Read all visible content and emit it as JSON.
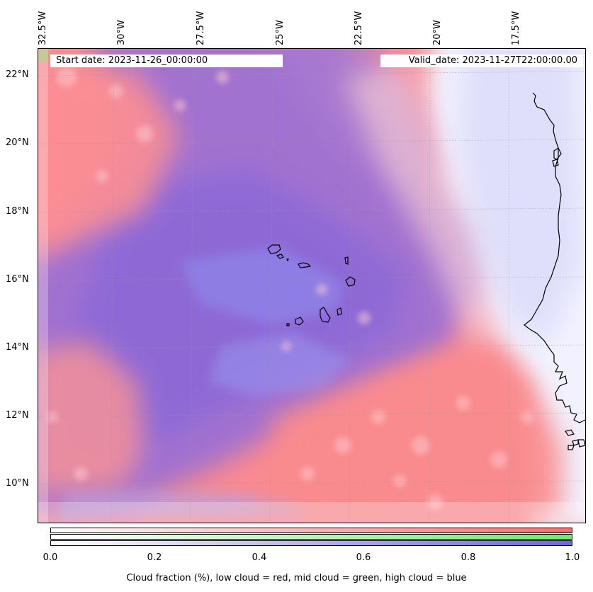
{
  "header": {
    "start_date": "Start date: 2023-11-26_00:00:00",
    "valid_date": "Valid_date: 2023-11-27T22:00:00.00"
  },
  "longitude_labels": [
    "32.5°W",
    "30°W",
    "27.5°W",
    "25°W",
    "22.5°W",
    "20°W",
    "17.5°W"
  ],
  "latitude_labels": [
    "22°N",
    "20°N",
    "18°N",
    "16°N",
    "14°N",
    "12°N",
    "10°N"
  ],
  "colorbar": {
    "ticks": [
      "0.0",
      "0.2",
      "0.4",
      "0.6",
      "0.8",
      "1.0"
    ],
    "label": "Cloud fraction (%), low cloud = red, mid cloud = green, high cloud = blue",
    "colors": {
      "low": "#ff6b6b",
      "mid": "#73e873",
      "high": "#6c67e0"
    }
  },
  "map": {
    "region": "Cape Verde / West African coast",
    "gridlines": true
  }
}
